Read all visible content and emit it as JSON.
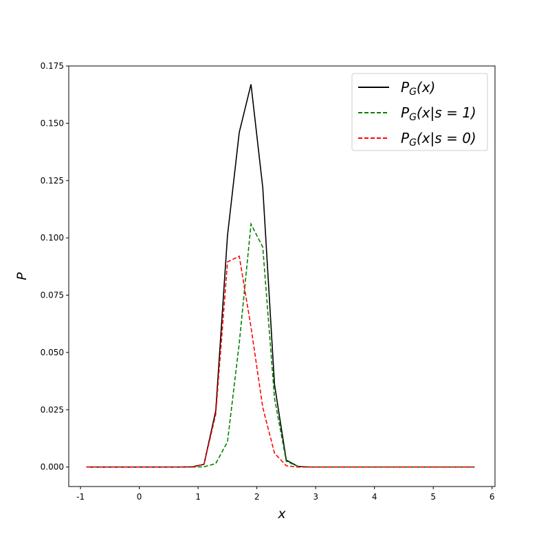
{
  "chart_data": {
    "type": "line",
    "title": "",
    "xlabel": "x",
    "ylabel": "P",
    "xlim": [
      -1.2,
      6.05
    ],
    "ylim": [
      -0.0085,
      0.175
    ],
    "xticks": [
      -1,
      0,
      1,
      2,
      3,
      4,
      5,
      6
    ],
    "yticks": [
      "0.000",
      "0.025",
      "0.050",
      "0.075",
      "0.100",
      "0.125",
      "0.150",
      "0.175"
    ],
    "grid": false,
    "legend_position": "top-right",
    "x": [
      -0.9,
      -0.7,
      -0.5,
      -0.3,
      -0.1,
      0.1,
      0.3,
      0.5,
      0.7,
      0.9,
      1.1,
      1.3,
      1.5,
      1.7,
      1.9,
      2.1,
      2.3,
      2.5,
      2.7,
      2.9,
      3.1,
      3.3,
      3.5,
      3.7,
      3.9,
      4.1,
      4.3,
      4.5,
      4.7,
      4.9,
      5.1,
      5.3,
      5.5,
      5.7
    ],
    "series": [
      {
        "name": {
          "base": "P",
          "sub": "G",
          "arg": "(x)"
        },
        "color": "#000000",
        "style": "solid",
        "values": [
          0,
          0,
          0,
          0,
          0,
          0,
          0,
          0,
          0,
          0.0001,
          0.0012,
          0.0245,
          0.101,
          0.146,
          0.167,
          0.122,
          0.036,
          0.003,
          0.0003,
          0,
          0,
          0,
          0,
          0,
          0,
          0,
          0,
          0,
          0,
          0,
          0,
          0,
          0,
          0
        ]
      },
      {
        "name": {
          "base": "P",
          "sub": "G",
          "arg": "(x|s = 1)"
        },
        "color": "#008000",
        "style": "dashed",
        "values": [
          0,
          0,
          0,
          0,
          0,
          0,
          0,
          0,
          0,
          0,
          0.0001,
          0.0015,
          0.011,
          0.054,
          0.106,
          0.096,
          0.03,
          0.0025,
          0.0003,
          0,
          0,
          0,
          0,
          0,
          0,
          0,
          0,
          0,
          0,
          0,
          0,
          0,
          0,
          0
        ]
      },
      {
        "name": {
          "base": "P",
          "sub": "G",
          "arg": "(x|s = 0)"
        },
        "color": "#ff0000",
        "style": "dashed",
        "values": [
          0,
          0,
          0,
          0,
          0,
          0,
          0,
          0,
          0,
          0.0001,
          0.0011,
          0.023,
          0.0895,
          0.092,
          0.061,
          0.026,
          0.006,
          0.0006,
          0,
          0,
          0,
          0,
          0,
          0,
          0,
          0,
          0,
          0,
          0,
          0,
          0,
          0,
          0,
          0
        ]
      }
    ]
  }
}
